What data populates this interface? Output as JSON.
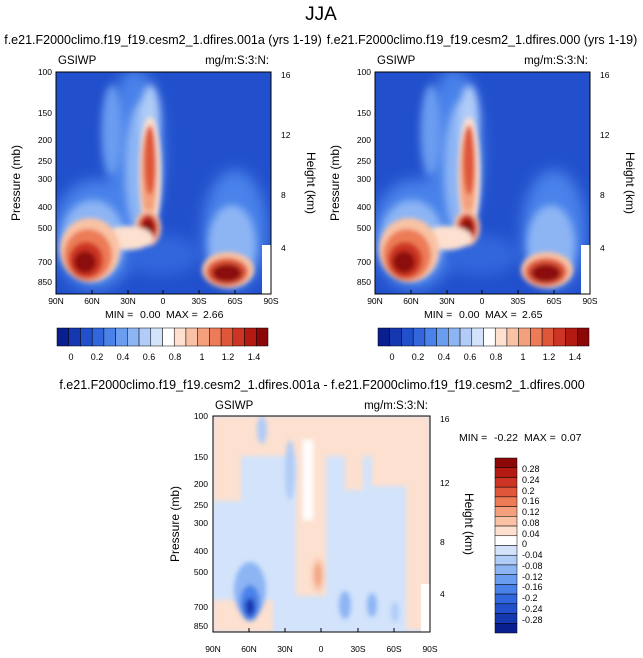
{
  "figure": {
    "season": "JJA"
  },
  "colors": {
    "full_palette": [
      "#0a1f8f",
      "#1537b0",
      "#2250cc",
      "#3166dc",
      "#4a82ea",
      "#6a9cf0",
      "#8db5f4",
      "#b0ccf7",
      "#d2e3fb",
      "#ffffff",
      "#fde0cf",
      "#f9c2a4",
      "#f4a07c",
      "#ed7b57",
      "#df5638",
      "#cc3423",
      "#b31a12",
      "#8c0808"
    ],
    "diff_palette": [
      "#0a1f8f",
      "#1537b0",
      "#2250cc",
      "#3166dc",
      "#4a82ea",
      "#6a9cf0",
      "#8db5f4",
      "#b0ccf7",
      "#d2e3fb",
      "#ffffff",
      "#fde0cf",
      "#f9c2a4",
      "#f4a07c",
      "#ed7b57",
      "#df5638",
      "#cc3423",
      "#b31a12",
      "#8c0808"
    ]
  },
  "chart_data": [
    {
      "type": "heatmap",
      "id": "case1",
      "title": "f.e21.F2000climo.f19_f19.cesm2_1.dfires.001a (yrs 1-19)",
      "left_label": "GSIWP",
      "right_label": "mg/m:S:3:N:",
      "ylabel": "Pressure (mb)",
      "y2label": "Height (km)",
      "x_ticks": [
        "90N",
        "60N",
        "30N",
        "0",
        "30S",
        "60S",
        "90S"
      ],
      "y_ticks": [
        "100",
        "150",
        "200",
        "250",
        "300",
        "400",
        "500",
        "700",
        "850"
      ],
      "y2_ticks": [
        "16",
        "12",
        "8",
        "4"
      ],
      "min_label": "MIN =",
      "min_value": "0.00",
      "max_label": "MAX =",
      "max_value": "2.66",
      "colorbar_labels": [
        "0",
        "0.2",
        "0.4",
        "0.6",
        "0.8",
        "1",
        "1.2",
        "1.4"
      ],
      "zlim": [
        0,
        1.5
      ]
    },
    {
      "type": "heatmap",
      "id": "case2",
      "title": "f.e21.F2000climo.f19_f19.cesm2_1.dfires.000 (yrs 1-19)",
      "left_label": "GSIWP",
      "right_label": "mg/m:S:3:N:",
      "ylabel": "Pressure (mb)",
      "y2label": "Height (km)",
      "x_ticks": [
        "90N",
        "60N",
        "30N",
        "0",
        "30S",
        "60S",
        "90S"
      ],
      "y_ticks": [
        "100",
        "150",
        "200",
        "250",
        "300",
        "400",
        "500",
        "700",
        "850"
      ],
      "y2_ticks": [
        "16",
        "12",
        "8",
        "4"
      ],
      "min_label": "MIN =",
      "min_value": "0.00",
      "max_label": "MAX =",
      "max_value": "2.65",
      "colorbar_labels": [
        "0",
        "0.2",
        "0.4",
        "0.6",
        "0.8",
        "1",
        "1.2",
        "1.4"
      ],
      "zlim": [
        0,
        1.5
      ]
    },
    {
      "type": "heatmap",
      "id": "diff",
      "title": "f.e21.F2000climo.f19_f19.cesm2_1.dfires.001a - f.e21.F2000climo.f19_f19.cesm2_1.dfires.000",
      "left_label": "GSIWP",
      "right_label": "mg/m:S:3:N:",
      "ylabel": "Pressure (mb)",
      "y2label": "Height (km)",
      "x_ticks": [
        "90N",
        "60N",
        "30N",
        "0",
        "30S",
        "60S",
        "90S"
      ],
      "y_ticks": [
        "100",
        "150",
        "200",
        "250",
        "300",
        "400",
        "500",
        "700",
        "850"
      ],
      "y2_ticks": [
        "16",
        "12",
        "8",
        "4"
      ],
      "min_label": "MIN =",
      "min_value": "-0.22",
      "max_label": "MAX =",
      "max_value": "0.07",
      "colorbar_labels": [
        "0.28",
        "0.24",
        "0.2",
        "0.16",
        "0.12",
        "0.08",
        "0.04",
        "0",
        "-0.04",
        "-0.08",
        "-0.12",
        "-0.16",
        "-0.2",
        "-0.24",
        "-0.28"
      ],
      "zlim": [
        -0.3,
        0.3
      ]
    }
  ]
}
